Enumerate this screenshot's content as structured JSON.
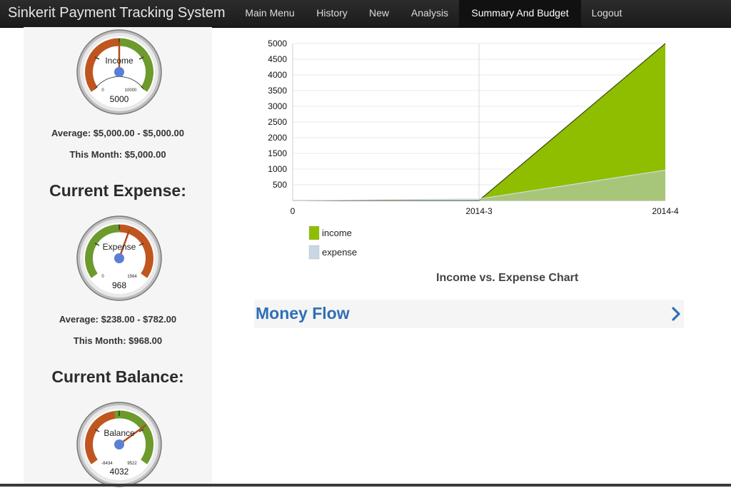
{
  "app": {
    "brand": "Sinkerit Payment Tracking System"
  },
  "nav": {
    "items": [
      {
        "label": "Main Menu"
      },
      {
        "label": "History"
      },
      {
        "label": "New"
      },
      {
        "label": "Analysis"
      },
      {
        "label": "Summary And Budget",
        "active": true
      },
      {
        "label": "Logout"
      }
    ]
  },
  "gauges": {
    "income": {
      "title": "Income",
      "min": "0",
      "max": "10000",
      "value": "5000",
      "level": 0.5,
      "average_text": "Average: $5,000.00 - $5,000.00",
      "month_text": "This Month: $5,000.00"
    },
    "expense_heading": "Current Expense:",
    "expense": {
      "title": "Expense",
      "min": "0",
      "max": "1564",
      "value": "968",
      "level": 0.62,
      "average_text": "Average: $238.00 - $782.00",
      "month_text": "This Month: $968.00"
    },
    "balance_heading": "Current Balance:",
    "balance": {
      "title": "Balance",
      "min": "-8434",
      "max": "9522",
      "value": "4032",
      "level": 0.69
    }
  },
  "gauge_colors": {
    "red_zone": "#c0561f",
    "green_zone": "#6d9a2c",
    "needle": "#b24a1a",
    "hub": "#5b7fd6"
  },
  "chart_data": {
    "type": "area",
    "title": "Income vs. Expense Chart",
    "categories": [
      "0",
      "2014-3",
      "2014-4"
    ],
    "ylim": [
      0,
      5000
    ],
    "yticks": [
      "500",
      "1000",
      "1500",
      "2000",
      "2500",
      "3000",
      "3500",
      "4000",
      "4500",
      "5000"
    ],
    "series": [
      {
        "name": "income",
        "values": [
          0,
          0,
          5000
        ],
        "color": "#8fbd00"
      },
      {
        "name": "expense",
        "values": [
          0,
          50,
          968
        ],
        "color": "#c9d6e3"
      }
    ],
    "legend": "bottom-left",
    "grid": true
  },
  "money_flow": {
    "title": "Money Flow",
    "arrow_icon": "chevron-right-icon",
    "color": "#2f6fb6"
  }
}
